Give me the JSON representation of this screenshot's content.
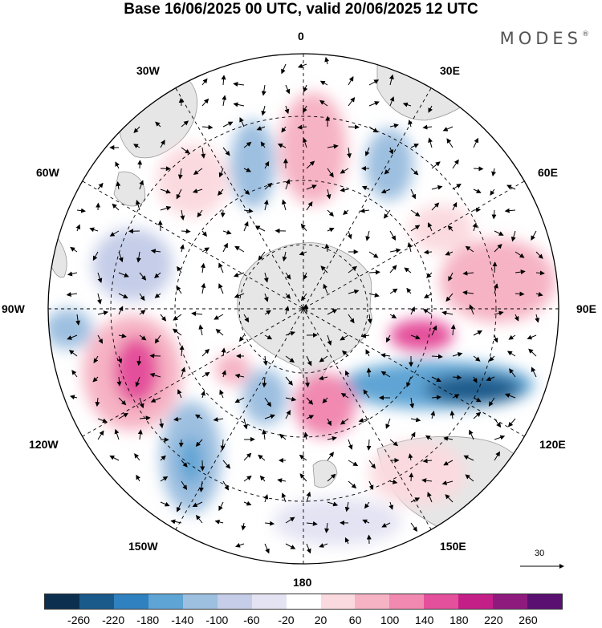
{
  "header": {
    "title": "Base 16/06/2025 00 UTC, valid 20/06/2025 12 UTC",
    "brand": "MODES",
    "brand_mark": "®"
  },
  "map": {
    "projection": "south-polar-stereographic",
    "longitude_labels": {
      "top": "0",
      "bottom": "180",
      "right": "90E",
      "left": "90W",
      "lon30e": "30E",
      "lon60e": "60E",
      "lon120e": "120E",
      "lon150e": "150E",
      "lon30w": "30W",
      "lon60w": "60W",
      "lon120w": "120W",
      "lon150w": "150W"
    },
    "vector_scale_label": "30",
    "land_color": "#e6e6e6",
    "graticule_style": "dashed"
  },
  "colorbar": {
    "colors": [
      "#0d2f4f",
      "#1a5a8a",
      "#2f82bf",
      "#5ea4d4",
      "#9dbfe0",
      "#c5cde8",
      "#e4e3f3",
      "#ffffff",
      "#fbdadf",
      "#f6b3c4",
      "#f189b0",
      "#e4509b",
      "#c41f87",
      "#8f1a7e",
      "#5a1070"
    ],
    "ticks": [
      "-260",
      "-220",
      "-180",
      "-140",
      "-100",
      "-60",
      "-20",
      "20",
      "60",
      "100",
      "140",
      "180",
      "220",
      "260"
    ]
  }
}
